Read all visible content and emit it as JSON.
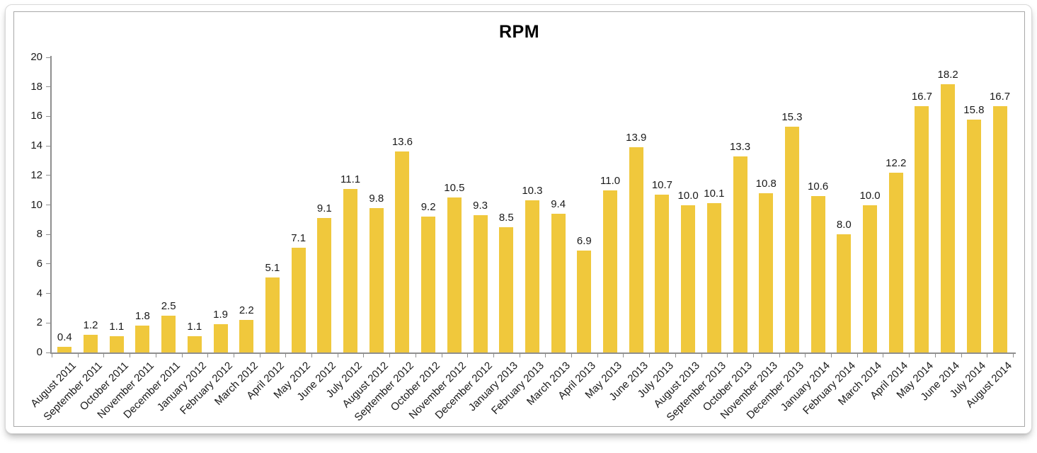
{
  "chart_data": {
    "type": "bar",
    "title": "RPM",
    "categories": [
      "August 2011",
      "September 2011",
      "October 2011",
      "November 2011",
      "December 2011",
      "January 2012",
      "February 2012",
      "March 2012",
      "April 2012",
      "May 2012",
      "June 2012",
      "July 2012",
      "August 2012",
      "September 2012",
      "October 2012",
      "November 2012",
      "December 2012",
      "January 2013",
      "February 2013",
      "March 2013",
      "April 2013",
      "May 2013",
      "June 2013",
      "July 2013",
      "August 2013",
      "September 2013",
      "October 2013",
      "November 2013",
      "December 2013",
      "January 2014",
      "February 2014",
      "March 2014",
      "April 2014",
      "May 2014",
      "June 2014",
      "July 2014",
      "August 2014"
    ],
    "values": [
      0.4,
      1.2,
      1.1,
      1.8,
      2.5,
      1.1,
      1.9,
      2.2,
      5.1,
      7.1,
      9.1,
      11.1,
      9.8,
      13.6,
      9.2,
      10.5,
      9.3,
      8.5,
      10.3,
      9.4,
      6.9,
      11.0,
      13.9,
      10.7,
      10.0,
      10.1,
      13.3,
      10.8,
      15.3,
      10.6,
      8.0,
      10.0,
      12.2,
      16.7,
      18.2,
      15.8,
      16.7
    ],
    "value_labels": [
      "0.4",
      "1.2",
      "1.1",
      "1.8",
      "2.5",
      "1.1",
      "1.9",
      "2.2",
      "5.1",
      "7.1",
      "9.1",
      "11.1",
      "9.8",
      "13.6",
      "9.2",
      "10.5",
      "9.3",
      "8.5",
      "10.3",
      "9.4",
      "6.9",
      "11.0",
      "13.9",
      "10.7",
      "10.0",
      "10.1",
      "13.3",
      "10.8",
      "15.3",
      "10.6",
      "8.0",
      "10.0",
      "12.2",
      "16.7",
      "18.2",
      "15.8",
      "16.7"
    ],
    "xlabel": "",
    "ylabel": "",
    "ylim": [
      0,
      20
    ],
    "ytick_step": 2,
    "ytick_labels": [
      "0",
      "2",
      "4",
      "6",
      "8",
      "10",
      "12",
      "14",
      "16",
      "18",
      "20"
    ],
    "grid": "off",
    "legend": "none",
    "bar_color": "#F0C83C",
    "axis_color": "#8F8F8F",
    "label_color": "#1A1A1A",
    "title_color": "#000000"
  }
}
